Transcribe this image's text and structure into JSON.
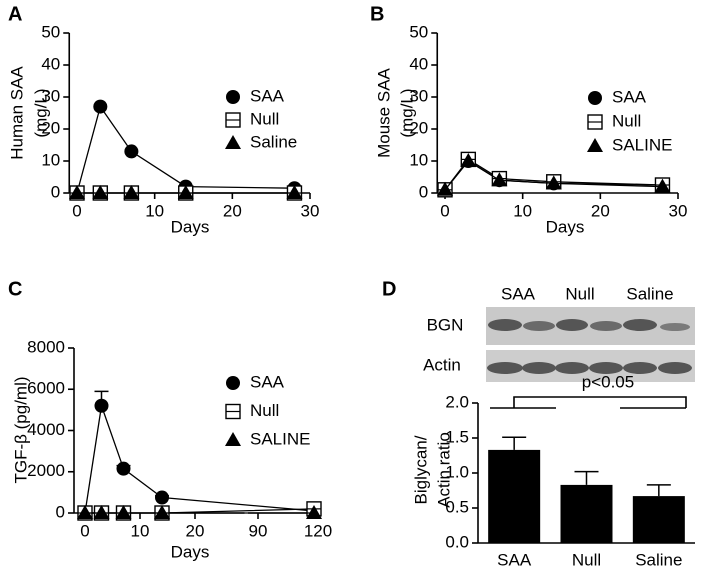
{
  "chart_data": [
    {
      "type": "line",
      "panel_label": "A",
      "ylabel": [
        "Human SAA",
        "(mg/L)"
      ],
      "xlabel": "Days",
      "x": [
        0,
        3,
        7,
        14,
        28
      ],
      "xlim": [
        -1,
        30
      ],
      "xticks": [
        0,
        10,
        20,
        30
      ],
      "ylim": [
        0,
        50
      ],
      "yticks": [
        0,
        10,
        20,
        30,
        40,
        50
      ],
      "series": [
        {
          "name": "SAA",
          "color": "#000000",
          "marker": "circle",
          "values": [
            0,
            27,
            13,
            2,
            1.5
          ]
        },
        {
          "name": "Null",
          "color": "#000000",
          "marker": "square",
          "values": [
            0,
            0,
            0,
            0,
            0
          ]
        },
        {
          "name": "Saline",
          "color": "#000000",
          "marker": "triangle",
          "values": [
            0,
            0,
            0,
            0,
            0
          ]
        }
      ]
    },
    {
      "type": "line",
      "panel_label": "B",
      "ylabel": [
        "Mouse SAA",
        "(mg/L)"
      ],
      "xlabel": "Days",
      "x": [
        0,
        3,
        7,
        14,
        28
      ],
      "xlim": [
        -1,
        30
      ],
      "xticks": [
        0,
        10,
        20,
        30
      ],
      "ylim": [
        0,
        50
      ],
      "yticks": [
        0,
        10,
        20,
        30,
        40,
        50
      ],
      "series": [
        {
          "name": "SAA",
          "color": "#000000",
          "marker": "circle",
          "values": [
            1,
            10,
            4,
            3,
            2.5
          ]
        },
        {
          "name": "Null",
          "color": "#000000",
          "marker": "square",
          "values": [
            1,
            10.5,
            4.5,
            3.5,
            2.5
          ]
        },
        {
          "name": "SALINE",
          "color": "#000000",
          "marker": "triangle",
          "values": [
            1,
            10,
            4,
            3,
            2
          ]
        }
      ]
    },
    {
      "type": "line",
      "panel_label": "C",
      "ylabel": [
        "TGF-β (pg/ml)"
      ],
      "xlabel": "Days",
      "x": [
        0,
        3,
        7,
        14,
        118
      ],
      "x_segments": [
        [
          -2,
          29
        ],
        [
          85,
          121
        ]
      ],
      "xticks": [
        0,
        10,
        20,
        90,
        120
      ],
      "ylim": [
        0,
        8000
      ],
      "yticks": [
        0,
        2000,
        4000,
        6000,
        8000
      ],
      "series": [
        {
          "name": "SAA",
          "color": "#000000",
          "marker": "circle",
          "values": [
            0,
            5200,
            2150,
            750,
            100
          ],
          "errors": [
            0,
            700,
            150,
            80,
            0
          ]
        },
        {
          "name": "Null",
          "color": "#000000",
          "marker": "square",
          "values": [
            0,
            0,
            0,
            0,
            200
          ]
        },
        {
          "name": "SALINE",
          "color": "#000000",
          "marker": "triangle",
          "values": [
            0,
            0,
            0,
            0,
            0
          ]
        }
      ]
    },
    {
      "type": "bar",
      "panel_label": "D",
      "ylabel": [
        "Biglycan/",
        "Actin ratio"
      ],
      "blot": {
        "column_labels": [
          "SAA",
          "Null",
          "Saline"
        ],
        "row_labels": [
          "BGN",
          "Actin"
        ]
      },
      "categories": [
        "SAA",
        "Null",
        "Saline"
      ],
      "values": [
        1.33,
        0.83,
        0.67
      ],
      "errors": [
        0.18,
        0.19,
        0.16
      ],
      "color": "#000000",
      "ylim": [
        0,
        2
      ],
      "yticks": [
        {
          "value": 0,
          "label": "0.0"
        },
        {
          "value": 0.5,
          "label": "0.5"
        },
        {
          "value": 1,
          "label": "1.0"
        },
        {
          "value": 1.5,
          "label": "1.5"
        },
        {
          "value": 2,
          "label": "2.0"
        }
      ],
      "annotation": "p<0.05"
    }
  ]
}
